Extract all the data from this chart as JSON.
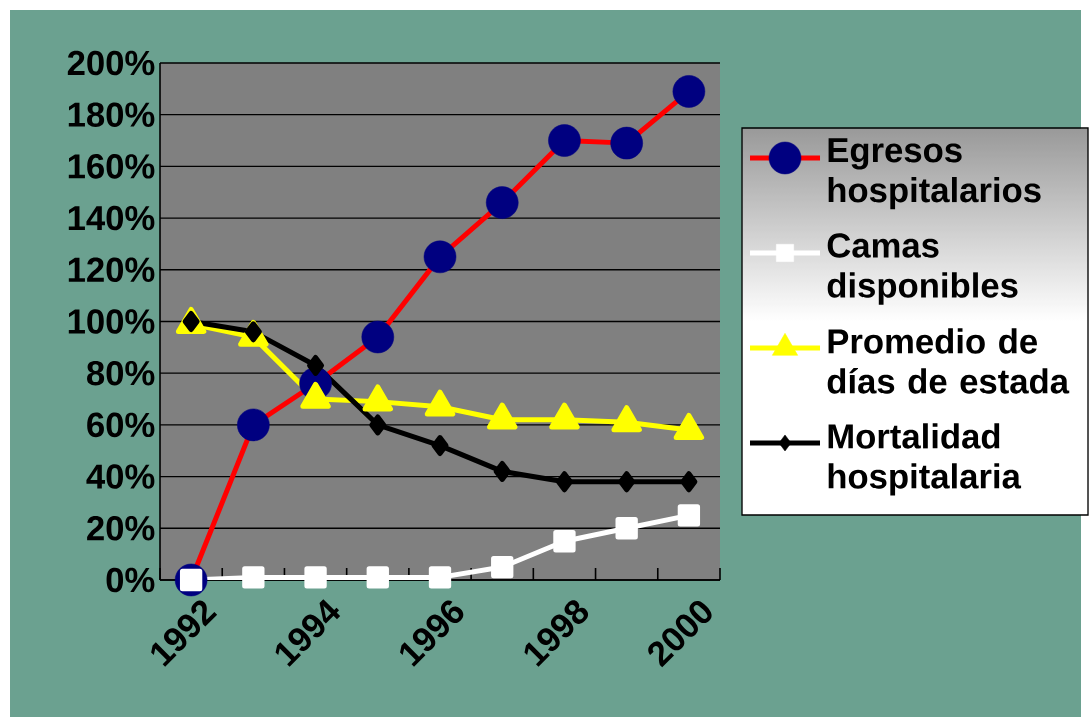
{
  "chart_data": {
    "type": "line",
    "categories": [
      "1992",
      null,
      "1994",
      null,
      "1996",
      null,
      "1998",
      null,
      "2000"
    ],
    "series": [
      {
        "name": "Egresos hospitalarios",
        "color": "#ff0000",
        "marker": "circle",
        "colors": [
          "#000080",
          "#000080",
          "#000080",
          "#000080",
          "#000080",
          "#000080",
          "#000080",
          "#000080",
          "#000080"
        ],
        "values": [
          0,
          60,
          76,
          94,
          125,
          146,
          170,
          169,
          189
        ]
      },
      {
        "name": "Camas disponibles",
        "color": "#ffffff",
        "marker": "square",
        "values": [
          0,
          1,
          1,
          1,
          1,
          5,
          15,
          20,
          25
        ]
      },
      {
        "name": "Promedio de días de estada",
        "color": "#ffff00",
        "marker": "triangle",
        "values": [
          99,
          94,
          70,
          69,
          67,
          62,
          62,
          61,
          58
        ]
      },
      {
        "name": "Mortalidad hospitalaria",
        "color": "#000000",
        "marker": "diamond",
        "values": [
          100,
          96,
          83,
          60,
          52,
          42,
          38,
          38,
          38
        ]
      }
    ],
    "ylim": [
      0,
      200
    ],
    "yticks": [
      {
        "value": 0,
        "label": "0%"
      },
      {
        "value": 20,
        "label": "20%"
      },
      {
        "value": 40,
        "label": "40%"
      },
      {
        "value": 60,
        "label": "60%"
      },
      {
        "value": 80,
        "label": "80%"
      },
      {
        "value": 100,
        "label": "100%"
      },
      {
        "value": 120,
        "label": "120%"
      },
      {
        "value": 140,
        "label": "140%"
      },
      {
        "value": 160,
        "label": "160%"
      },
      {
        "value": 180,
        "label": "180%"
      },
      {
        "value": 200,
        "label": "200%"
      }
    ],
    "grid": "y",
    "legend": "right",
    "line_style": "solid"
  }
}
